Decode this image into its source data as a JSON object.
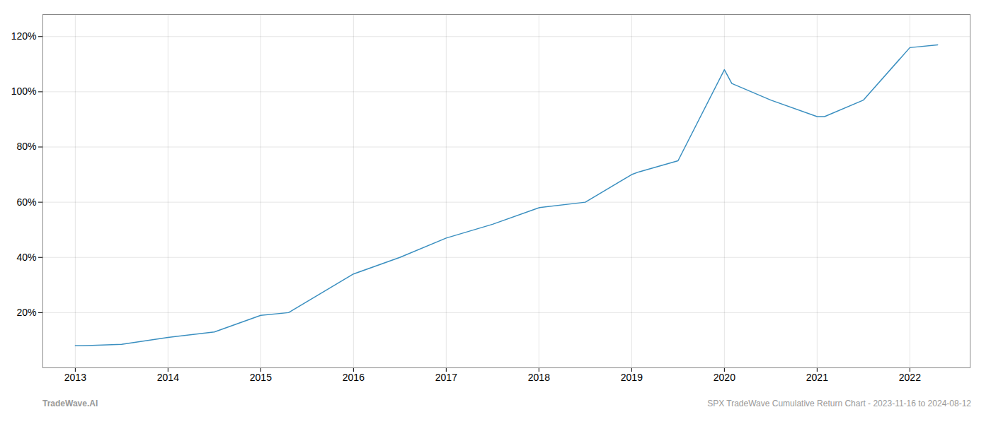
{
  "chart_data": {
    "type": "line",
    "x": [
      2013.0,
      2013.08,
      2013.5,
      2014.0,
      2014.5,
      2015.0,
      2015.3,
      2016.0,
      2016.5,
      2017.0,
      2017.5,
      2018.0,
      2018.5,
      2019.0,
      2019.08,
      2019.5,
      2020.0,
      2020.08,
      2020.5,
      2021.0,
      2021.08,
      2021.5,
      2022.0,
      2022.3
    ],
    "values": [
      8,
      8,
      8.5,
      11,
      13,
      19,
      20,
      34,
      40,
      47,
      52,
      58,
      60,
      70,
      71,
      75,
      108,
      103,
      97,
      91,
      91,
      97,
      116,
      117
    ],
    "color": "#3a8fc0",
    "xlim": [
      2012.65,
      2022.65
    ],
    "xticks": [
      2013,
      2014,
      2015,
      2016,
      2017,
      2018,
      2019,
      2020,
      2021,
      2022
    ],
    "ylim": [
      0,
      128
    ],
    "yticks": [
      {
        "value": 20,
        "label": "20%"
      },
      {
        "value": 40,
        "label": "40%"
      },
      {
        "value": 60,
        "label": "60%"
      },
      {
        "value": 80,
        "label": "80%"
      },
      {
        "value": 100,
        "label": "100%"
      },
      {
        "value": 120,
        "label": "120%"
      }
    ],
    "grid": true,
    "annotations": [
      "TradeWave.AI",
      "SPX TradeWave Cumulative Return Chart - 2023-11-16 to 2024-08-12"
    ]
  }
}
